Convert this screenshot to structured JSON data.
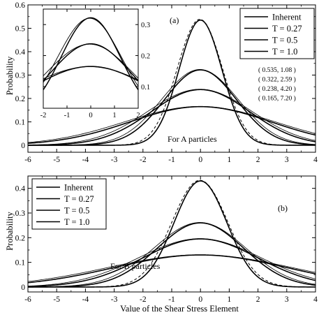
{
  "xlabel": "Value  of  the Shear  Stress  Element",
  "chart_data": [
    {
      "type": "line",
      "panel": "(a)",
      "annotation": "For  A  particles",
      "ylabel": "Probability",
      "xlim": [
        -6,
        4
      ],
      "ylim": [
        -0.03,
        0.6
      ],
      "xticks": [
        -6,
        -5,
        -4,
        -3,
        -2,
        -1,
        0,
        1,
        2,
        3,
        4
      ],
      "yticks": [
        0,
        0.1,
        0.2,
        0.3,
        0.4,
        0.5,
        0.6
      ],
      "ytick_labels": [
        "0",
        "0.1",
        "0.2",
        "0.3",
        "0.4",
        "0.5",
        "0.6"
      ],
      "legend": [
        "Inherent",
        "T = 0.27",
        "T = 0.5",
        "T = 1.0"
      ],
      "legend_position": "top-right",
      "params": [
        "( 0.535, 1.08 )",
        "( 0.322, 2.59 )",
        "( 0.238, 4.20 )",
        "( 0.165, 7.20 )"
      ],
      "series": [
        {
          "peak": 0.535,
          "sigma": 0.745,
          "dashed_fit": true
        },
        {
          "peak": 0.322,
          "sigma": 1.25,
          "dashed_fit": false
        },
        {
          "peak": 0.238,
          "sigma": 1.7,
          "dashed_fit": false
        },
        {
          "peak": 0.165,
          "sigma": 2.45,
          "dashed_fit": false
        }
      ],
      "inset": {
        "xlim": [
          -2,
          2
        ],
        "ylim": [
          0.03,
          0.35
        ],
        "xticks": [
          -2,
          -1,
          0,
          1,
          2
        ],
        "yticks": [
          0.1,
          0.2,
          0.3
        ],
        "ytick_labels": [
          "0.1",
          "0.2",
          "0.3"
        ],
        "series": [
          {
            "peak": 0.322,
            "sigma": 1.25
          },
          {
            "peak": 0.238,
            "sigma": 1.7
          },
          {
            "peak": 0.165,
            "sigma": 2.45
          }
        ]
      }
    },
    {
      "type": "line",
      "panel": "(b)",
      "annotation": "For  B  particles",
      "ylabel": "Probability",
      "xlim": [
        -6,
        4
      ],
      "ylim": [
        -0.02,
        0.45
      ],
      "xticks": [
        -6,
        -5,
        -4,
        -3,
        -2,
        -1,
        0,
        1,
        2,
        3,
        4
      ],
      "yticks": [
        0,
        0.1,
        0.2,
        0.3,
        0.4
      ],
      "ytick_labels": [
        "0",
        "0.1",
        "0.2",
        "0.3",
        "0.4"
      ],
      "legend": [
        "Inherent",
        "T = 0.27",
        "T = 0.5",
        "T = 1.0"
      ],
      "legend_position": "top-left",
      "series": [
        {
          "peak": 0.43,
          "sigma": 0.92,
          "dashed_fit": true
        },
        {
          "peak": 0.26,
          "sigma": 1.5,
          "dashed_fit": false
        },
        {
          "peak": 0.195,
          "sigma": 2.0,
          "dashed_fit": false
        },
        {
          "peak": 0.13,
          "sigma": 3.0,
          "dashed_fit": false
        }
      ]
    }
  ]
}
